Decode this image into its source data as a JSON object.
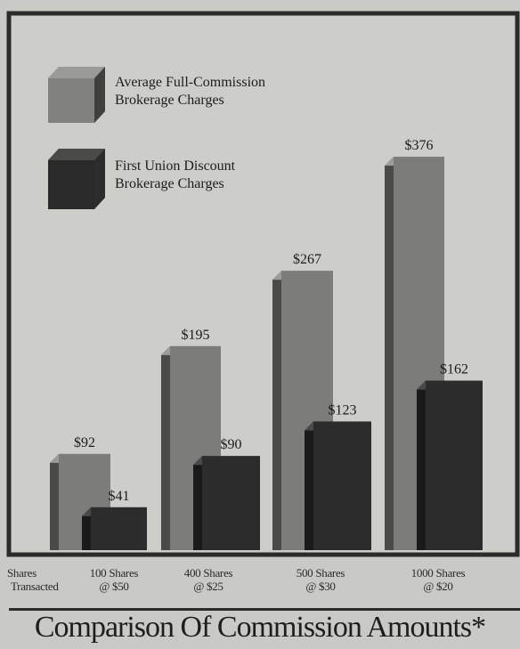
{
  "chart_data": {
    "type": "bar",
    "title": "Comparison Of Commission Amounts*",
    "xlabel": "Shares Transacted",
    "ylabel": "",
    "categories": [
      [
        "100 Shares",
        "@ $50"
      ],
      [
        "400 Shares",
        "@ $25"
      ],
      [
        "500 Shares",
        "@ $30"
      ],
      [
        "1000 Shares",
        "@ $20"
      ]
    ],
    "series": [
      {
        "name": "Average Full-Commission Brokerage Charges",
        "values": [
          92,
          195,
          267,
          376
        ],
        "labels": [
          "$92",
          "$195",
          "$267",
          "$376"
        ],
        "color": "#7c7c7a"
      },
      {
        "name": "First Union Discount Brokerage Charges",
        "values": [
          41,
          90,
          123,
          162
        ],
        "labels": [
          "$41",
          "$90",
          "$123",
          "$162"
        ],
        "color": "#2c2c2c"
      }
    ],
    "ylim": [
      0,
      400
    ],
    "grid": false,
    "legend_position": "top-left",
    "style": "3d"
  },
  "legend": {
    "items": [
      [
        "Average Full-Commission",
        "Brokerage Charges"
      ],
      [
        "First Union Discount",
        "Brokerage Charges"
      ]
    ]
  },
  "axis": {
    "title_lines": [
      "Shares",
      "Transacted"
    ]
  },
  "colors": {
    "background": "#c9c9c6",
    "full_commission": "#7c7c7a",
    "discount": "#2c2c2c",
    "frame": "#2b2b2b"
  }
}
